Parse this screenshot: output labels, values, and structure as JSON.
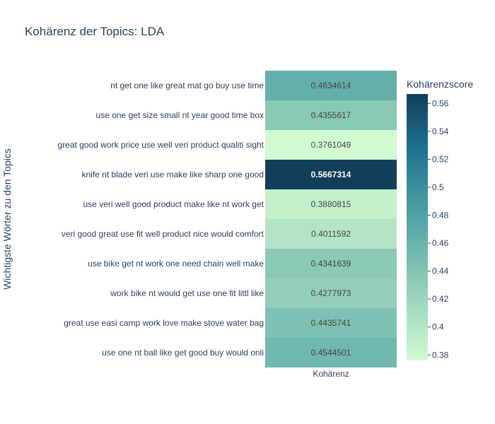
{
  "chart_data": {
    "type": "heatmap",
    "title": "Kohärenz der Topics: LDA",
    "ylabel": "Wichtigste Wörter zu den Topics",
    "x_categories": [
      "Kohärenz"
    ],
    "y_categories": [
      "nt get one like great mat go buy use time",
      "use one get size small nt year good time box",
      "great good work price use well veri product qualiti sight",
      "knife nt blade veri use make like sharp one good",
      "use veri well good product make like nt work get",
      "veri good great use fit well product nice would comfort",
      "use bike get nt work one need chain well make",
      "work bike nt would get use one fit littl like",
      "great use easi camp work love make stove water bag",
      "use one nt ball like get good buy would onli"
    ],
    "values": [
      0.4634614,
      0.4355617,
      0.3761049,
      0.5667314,
      0.3880815,
      0.4011592,
      0.4341639,
      0.4277973,
      0.4435741,
      0.4544501
    ],
    "value_labels": [
      "0.4634614",
      "0.4355617",
      "0.3761049",
      "0.5667314",
      "0.3880815",
      "0.4011592",
      "0.4341639",
      "0.4277973",
      "0.4435741",
      "0.4544501"
    ],
    "colorbar": {
      "title": "Kohärenzscore",
      "range": [
        0.3761049,
        0.5667314
      ],
      "ticks": [
        0.56,
        0.54,
        0.52,
        0.5,
        0.48,
        0.46,
        0.44,
        0.42,
        0.4,
        0.38
      ],
      "tick_labels": [
        "0.56",
        "0.54",
        "0.52",
        "0.5",
        "0.48",
        "0.46",
        "0.44",
        "0.42",
        "0.4",
        "0.38"
      ],
      "colors": [
        "#d1fad1",
        "#a4dabf",
        "#72b9ae",
        "#45989f",
        "#1e7090",
        "#123e5a"
      ]
    }
  }
}
